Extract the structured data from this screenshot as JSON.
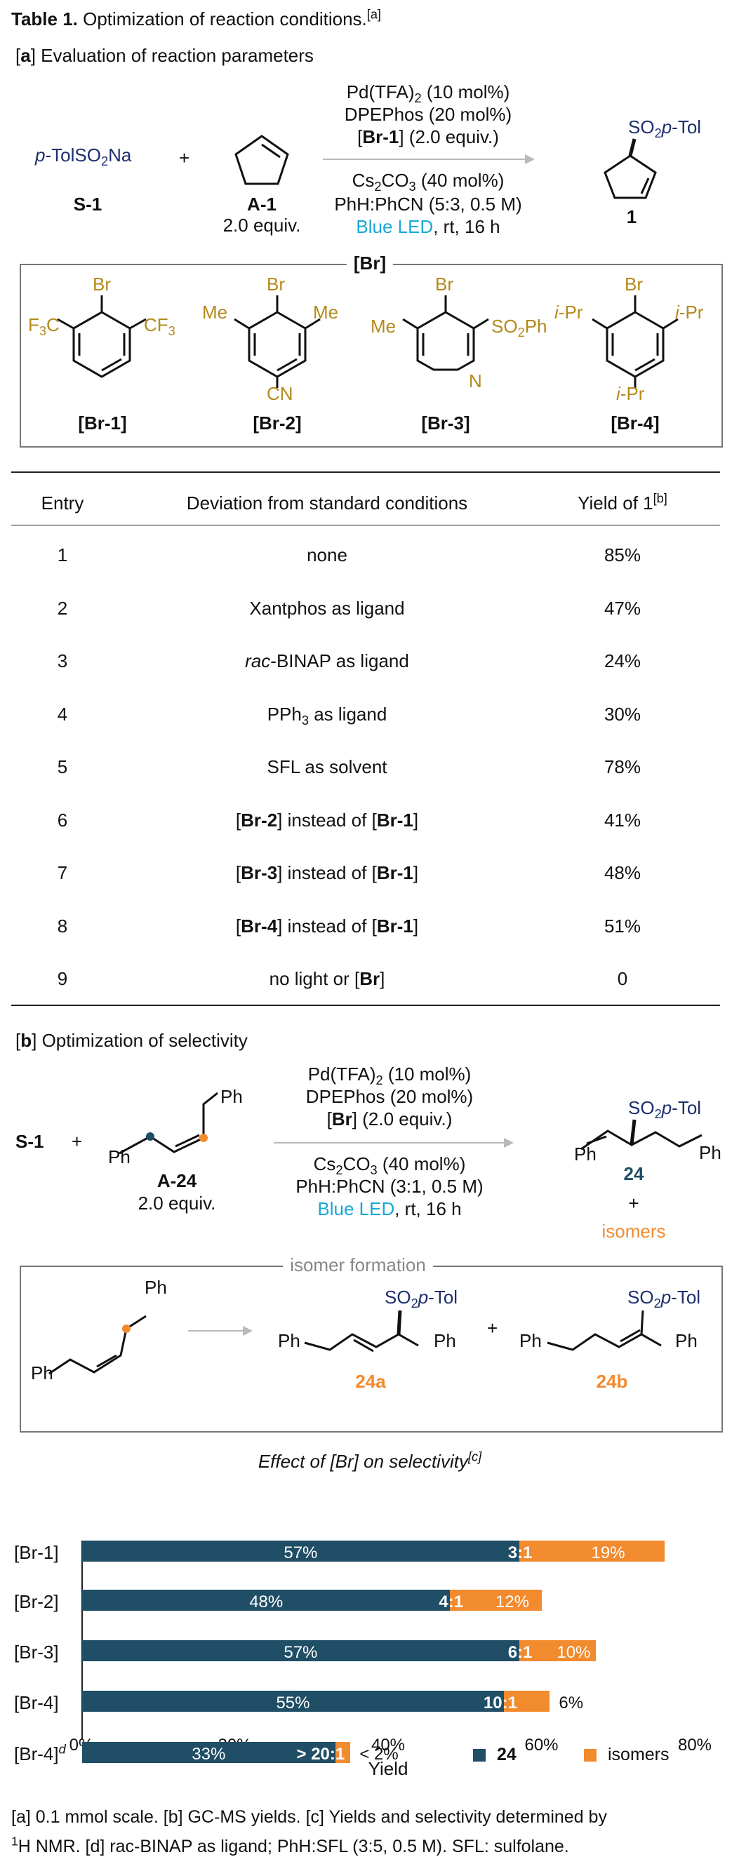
{
  "table_title": {
    "label": "Table 1.",
    "text": " Optimization of reaction conditions.",
    "sup": "[a]"
  },
  "section_a": {
    "tag": "a",
    "text": " Evaluation of reaction parameters"
  },
  "scheme_a": {
    "reagent_s1": "p-TolSO2Na",
    "reagent_s1_label": "S-1",
    "plus": "+",
    "reagent_a1_label": "A-1",
    "reagent_a1_equiv": "2.0 equiv.",
    "cond1": "Pd(TFA)2 (10 mol%)",
    "cond2": "DPEPhos (20 mol%)",
    "cond3_br": "Br-1",
    "cond3_rest": " (2.0 equiv.)",
    "cond4": "Cs2CO3 (40 mol%)",
    "cond5": "PhH:PhCN (5:3, 0.5 M)",
    "cond6_led": "Blue LED",
    "cond6_rest": ", rt, 16 h",
    "product_group": "SO2p-Tol",
    "product_label": "1"
  },
  "br_box": {
    "title": "Br",
    "items": [
      {
        "label": "Br-1",
        "subs": [
          "Br",
          "F3C",
          "CF3"
        ]
      },
      {
        "label": "Br-2",
        "subs": [
          "Br",
          "Me",
          "Me",
          "CN"
        ]
      },
      {
        "label": "Br-3",
        "subs": [
          "Br",
          "Me",
          "SO2Ph",
          "N"
        ]
      },
      {
        "label": "Br-4",
        "subs": [
          "Br",
          "i-Pr",
          "i-Pr",
          "i-Pr"
        ]
      }
    ]
  },
  "table": {
    "headers": [
      "Entry",
      "Deviation from standard conditions",
      "Yield of 1",
      "[b]"
    ],
    "rows": [
      {
        "entry": "1",
        "deviation": "none",
        "yield": "85%"
      },
      {
        "entry": "2",
        "deviation": "Xantphos as ligand",
        "yield": "47%"
      },
      {
        "entry": "3",
        "deviation": "rac-BINAP as ligand",
        "yield": "24%"
      },
      {
        "entry": "4",
        "deviation": "PPh3 as ligand",
        "yield": "30%"
      },
      {
        "entry": "5",
        "deviation": "SFL as solvent",
        "yield": "78%"
      },
      {
        "entry": "6",
        "deviation": "[Br-2] instead of [Br-1]",
        "yield": "41%"
      },
      {
        "entry": "7",
        "deviation": "[Br-3] instead of [Br-1]",
        "yield": "48%"
      },
      {
        "entry": "8",
        "deviation": "[Br-4] instead of [Br-1]",
        "yield": "51%"
      },
      {
        "entry": "9",
        "deviation": "no light or [Br]",
        "yield": "0"
      }
    ]
  },
  "section_b": {
    "tag": "b",
    "text": " Optimization of selectivity"
  },
  "scheme_b": {
    "s1": "S-1",
    "plus": "+",
    "a24_label": "A-24",
    "a24_equiv": "2.0 equiv.",
    "ph": "Ph",
    "cond1": "Pd(TFA)2 (10 mol%)",
    "cond2": "DPEPhos (20 mol%)",
    "cond3_br": "Br",
    "cond3_rest": " (2.0 equiv.)",
    "cond4": "Cs2CO3 (40 mol%)",
    "cond5": "PhH:PhCN (3:1, 0.5 M)",
    "cond6_led": "Blue LED",
    "cond6_rest": ", rt, 16 h",
    "product_group": "SO2p-Tol",
    "product_label": "24",
    "plus2": "+",
    "isomers": "isomers"
  },
  "isomer_box": {
    "title": "isomer formation",
    "iso_a": "24a",
    "iso_b": "24b",
    "plus": "+",
    "group": "SO2p-Tol",
    "ph": "Ph"
  },
  "chart_data": {
    "type": "bar",
    "title": "Effect of [Br] on selectivity",
    "title_sup": "[c]",
    "xlabel": "Yield",
    "xlim": [
      0,
      80
    ],
    "xticks": [
      "0%",
      "20%",
      "40%",
      "60%",
      "80%"
    ],
    "legend": [
      {
        "name": "24",
        "color": "#1f4e66"
      },
      {
        "name": "isomers",
        "color": "#f28a2e"
      }
    ],
    "categories": [
      "[Br-1]",
      "[Br-2]",
      "[Br-3]",
      "[Br-4]",
      "[Br-4]"
    ],
    "category_sup": [
      "",
      "",
      "",
      "",
      "d"
    ],
    "series": [
      {
        "name": "24",
        "values": [
          57,
          48,
          57,
          55,
          33
        ],
        "labels": [
          "57%",
          "48%",
          "57%",
          "55%",
          "33%"
        ]
      },
      {
        "name": "isomers",
        "values": [
          19,
          12,
          10,
          6,
          2
        ],
        "labels": [
          "19%",
          "12%",
          "10%",
          "6%",
          "< 2%"
        ]
      }
    ],
    "ratios": [
      "3:1",
      "4:1",
      "6:1",
      "10:1",
      "> 20:1"
    ]
  },
  "footnotes": {
    "line1": "[a] 0.1 mmol scale. [b] GC-MS yields. [c] Yields and selectivity determined by",
    "line2_sup": "1",
    "line2": "H NMR. [d] rac-BINAP as ligand; PhH:SFL (3:5, 0.5 M). SFL: sulfolane."
  }
}
